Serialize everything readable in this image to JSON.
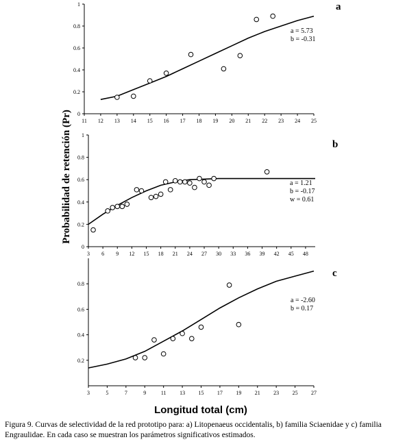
{
  "y_axis_label": "Probabilidad de retención (Pr)",
  "x_axis_label": "Longitud total (cm)",
  "caption": "Figura 9. Curvas de selectividad de la red prototipo para: a) Litopenaeus occidentalis, b) familia Sciaenidae y c) familia Engraulidae. En cada caso se muestran los parámetros significativos estimados.",
  "chart_data": [
    {
      "panel": "a",
      "type": "scatter",
      "xlim": [
        11,
        25
      ],
      "ylim": [
        0,
        1
      ],
      "x_ticks": [
        "11",
        "12",
        "13",
        "14",
        "15",
        "16",
        "17",
        "18",
        "19",
        "20",
        "21",
        "22",
        "23",
        "24",
        "25"
      ],
      "y_ticks": [
        "0",
        "0.2",
        "0.4",
        "0.6",
        "0.8",
        "1"
      ],
      "parameters": [
        "a = 5.73",
        "b = -0.31"
      ],
      "points": [
        {
          "x": 13.0,
          "y": 0.15
        },
        {
          "x": 14.0,
          "y": 0.16
        },
        {
          "x": 15.0,
          "y": 0.3
        },
        {
          "x": 16.0,
          "y": 0.37
        },
        {
          "x": 17.5,
          "y": 0.54
        },
        {
          "x": 19.5,
          "y": 0.41
        },
        {
          "x": 20.5,
          "y": 0.53
        },
        {
          "x": 21.5,
          "y": 0.86
        },
        {
          "x": 22.5,
          "y": 0.89
        }
      ],
      "curve": [
        [
          12.0,
          0.13
        ],
        [
          13.0,
          0.16
        ],
        [
          14.0,
          0.22
        ],
        [
          15.0,
          0.28
        ],
        [
          16.0,
          0.34
        ],
        [
          17.0,
          0.41
        ],
        [
          18.0,
          0.48
        ],
        [
          19.0,
          0.55
        ],
        [
          20.0,
          0.62
        ],
        [
          21.0,
          0.69
        ],
        [
          22.0,
          0.75
        ],
        [
          23.0,
          0.8
        ],
        [
          24.0,
          0.85
        ],
        [
          25.0,
          0.89
        ]
      ]
    },
    {
      "panel": "b",
      "type": "scatter",
      "xlim": [
        3,
        50
      ],
      "ylim": [
        0,
        1
      ],
      "x_ticks": [
        "3",
        "6",
        "9",
        "12",
        "15",
        "18",
        "21",
        "24",
        "27",
        "30",
        "33",
        "36",
        "39",
        "42",
        "45",
        "48"
      ],
      "y_ticks": [
        "0",
        "0.2",
        "0.4",
        "0.6",
        "0.8",
        "1"
      ],
      "parameters": [
        "a = 1.21",
        "b = -0.17",
        "w = 0.61"
      ],
      "points": [
        {
          "x": 4.0,
          "y": 0.15
        },
        {
          "x": 7.0,
          "y": 0.32
        },
        {
          "x": 8.0,
          "y": 0.35
        },
        {
          "x": 9.0,
          "y": 0.36
        },
        {
          "x": 10.0,
          "y": 0.36
        },
        {
          "x": 11.0,
          "y": 0.38
        },
        {
          "x": 13.0,
          "y": 0.51
        },
        {
          "x": 14.0,
          "y": 0.5
        },
        {
          "x": 16.0,
          "y": 0.44
        },
        {
          "x": 17.0,
          "y": 0.45
        },
        {
          "x": 18.0,
          "y": 0.47
        },
        {
          "x": 19.0,
          "y": 0.58
        },
        {
          "x": 20.0,
          "y": 0.51
        },
        {
          "x": 21.0,
          "y": 0.59
        },
        {
          "x": 22.0,
          "y": 0.58
        },
        {
          "x": 23.0,
          "y": 0.58
        },
        {
          "x": 24.0,
          "y": 0.57
        },
        {
          "x": 25.0,
          "y": 0.53
        },
        {
          "x": 26.0,
          "y": 0.61
        },
        {
          "x": 27.0,
          "y": 0.58
        },
        {
          "x": 28.0,
          "y": 0.55
        },
        {
          "x": 29.0,
          "y": 0.61
        },
        {
          "x": 40.0,
          "y": 0.67
        }
      ],
      "curve": [
        [
          3.0,
          0.2
        ],
        [
          6.0,
          0.29
        ],
        [
          9.0,
          0.37
        ],
        [
          12.0,
          0.44
        ],
        [
          15.0,
          0.5
        ],
        [
          18.0,
          0.55
        ],
        [
          21.0,
          0.58
        ],
        [
          24.0,
          0.6
        ],
        [
          27.0,
          0.605
        ],
        [
          30.0,
          0.61
        ],
        [
          35.0,
          0.61
        ],
        [
          40.0,
          0.61
        ],
        [
          45.0,
          0.61
        ],
        [
          50.0,
          0.61
        ]
      ]
    },
    {
      "panel": "c",
      "type": "scatter",
      "xlim": [
        3,
        27
      ],
      "ylim": [
        0,
        1
      ],
      "x_ticks": [
        "3",
        "5",
        "7",
        "9",
        "11",
        "13",
        "15",
        "17",
        "19",
        "21",
        "23",
        "25",
        "27"
      ],
      "y_ticks": [
        "0.2",
        "0.4",
        "0.6",
        "0.8"
      ],
      "parameters": [
        "a = -2.60",
        "b = 0.17"
      ],
      "points": [
        {
          "x": 8.0,
          "y": 0.22
        },
        {
          "x": 9.0,
          "y": 0.22
        },
        {
          "x": 10.0,
          "y": 0.36
        },
        {
          "x": 11.0,
          "y": 0.25
        },
        {
          "x": 12.0,
          "y": 0.37
        },
        {
          "x": 13.0,
          "y": 0.41
        },
        {
          "x": 14.0,
          "y": 0.37
        },
        {
          "x": 15.0,
          "y": 0.46
        },
        {
          "x": 18.0,
          "y": 0.79
        },
        {
          "x": 19.0,
          "y": 0.48
        }
      ],
      "curve": [
        [
          3.0,
          0.14
        ],
        [
          5.0,
          0.17
        ],
        [
          7.0,
          0.21
        ],
        [
          9.0,
          0.27
        ],
        [
          11.0,
          0.35
        ],
        [
          13.0,
          0.43
        ],
        [
          15.0,
          0.52
        ],
        [
          17.0,
          0.61
        ],
        [
          19.0,
          0.69
        ],
        [
          21.0,
          0.76
        ],
        [
          23.0,
          0.82
        ],
        [
          25.0,
          0.86
        ],
        [
          27.0,
          0.9
        ]
      ]
    }
  ]
}
